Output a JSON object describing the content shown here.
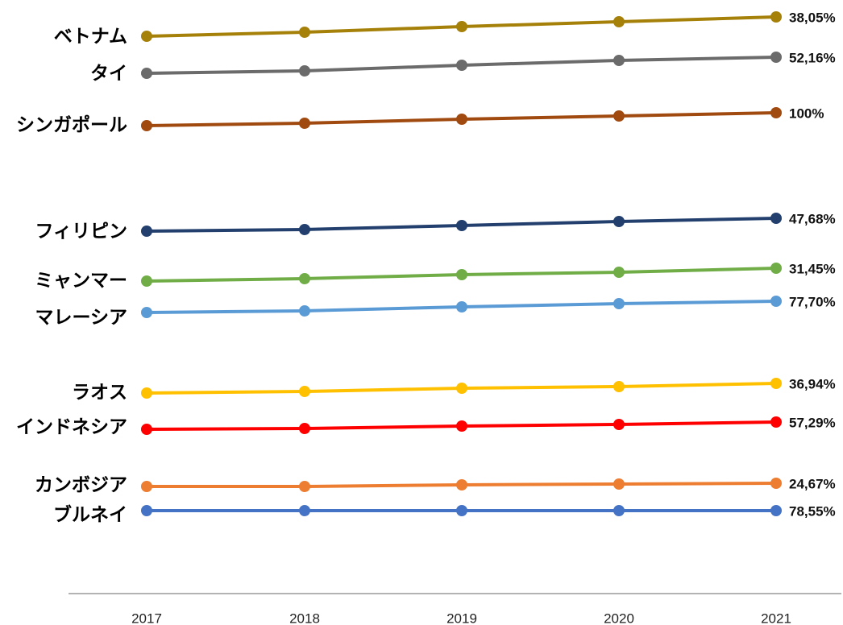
{
  "chart_data": {
    "type": "line",
    "title": "",
    "xlabel": "",
    "ylabel": "",
    "x": [
      "2017",
      "2018",
      "2019",
      "2020",
      "2021"
    ],
    "grid": false,
    "legend": "none (series labeled at left of each line)",
    "series": [
      {
        "name": "ベトナム",
        "end_label": "38,05%",
        "color": "#a6810a"
      },
      {
        "name": "タイ",
        "end_label": "52,16%",
        "color": "#6b6b6b"
      },
      {
        "name": "シンガポール",
        "end_label": "100%",
        "color": "#a14a10"
      },
      {
        "name": "フィリピン",
        "end_label": "47,68%",
        "color": "#223f6d"
      },
      {
        "name": "ミャンマー",
        "end_label": "31,45%",
        "color": "#70ad47"
      },
      {
        "name": "マレーシア",
        "end_label": "77,70%",
        "color": "#5b9bd5"
      },
      {
        "name": "ラオス",
        "end_label": "36,94%",
        "color": "#ffc000"
      },
      {
        "name": "インドネシア",
        "end_label": "57,29%",
        "color": "#ff0000"
      },
      {
        "name": "カンボジア",
        "end_label": "24,67%",
        "color": "#ed7d31"
      },
      {
        "name": "ブルネイ",
        "end_label": "78,55%",
        "color": "#4472c4"
      }
    ]
  }
}
